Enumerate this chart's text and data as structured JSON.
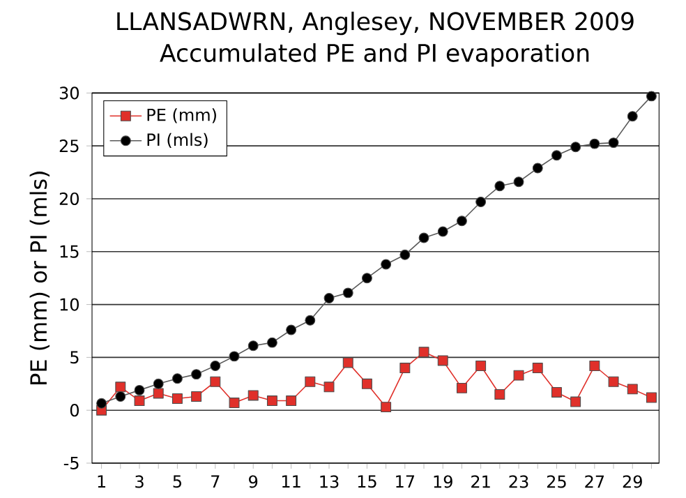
{
  "chart_data": {
    "type": "line",
    "title": "LLANSADWRN, Anglesey, NOVEMBER 2009",
    "subtitle": "Accumulated PE and PI evaporation",
    "ylabel": "PE (mm) or PI (mls)",
    "categories": [
      "1",
      null,
      "3",
      null,
      "5",
      null,
      "7",
      null,
      "9",
      null,
      "11",
      null,
      "13",
      null,
      "15",
      null,
      "17",
      null,
      "19",
      null,
      "21",
      null,
      "23",
      null,
      "25",
      null,
      "27",
      null,
      "29",
      null
    ],
    "series": [
      {
        "name": "PE (mm)",
        "color": "#e0302a",
        "marker": "square",
        "values": [
          0,
          2.2,
          0.9,
          1.6,
          1.1,
          1.3,
          2.7,
          0.7,
          1.4,
          0.9,
          0.9,
          2.7,
          2.2,
          4.5,
          2.5,
          0.3,
          4.0,
          5.5,
          4.7,
          2.1,
          4.2,
          1.5,
          3.3,
          4.0,
          1.7,
          0.8,
          4.2,
          2.7,
          2.0,
          1.2
        ]
      },
      {
        "name": "PI (mls)",
        "color": "#000000",
        "marker": "circle",
        "values": [
          0.65,
          1.3,
          1.9,
          2.5,
          3.0,
          3.4,
          4.2,
          5.1,
          6.1,
          6.4,
          7.6,
          8.5,
          10.6,
          11.1,
          12.5,
          13.8,
          14.7,
          16.3,
          16.9,
          17.9,
          19.7,
          21.2,
          21.6,
          22.9,
          24.1,
          24.9,
          25.2,
          25.3,
          27.8,
          29.7
        ]
      }
    ],
    "ylim": [
      -5,
      30
    ],
    "yticks": [
      -5,
      0,
      5,
      10,
      15,
      20,
      25,
      30
    ],
    "grid": "y",
    "legend": "top left"
  }
}
